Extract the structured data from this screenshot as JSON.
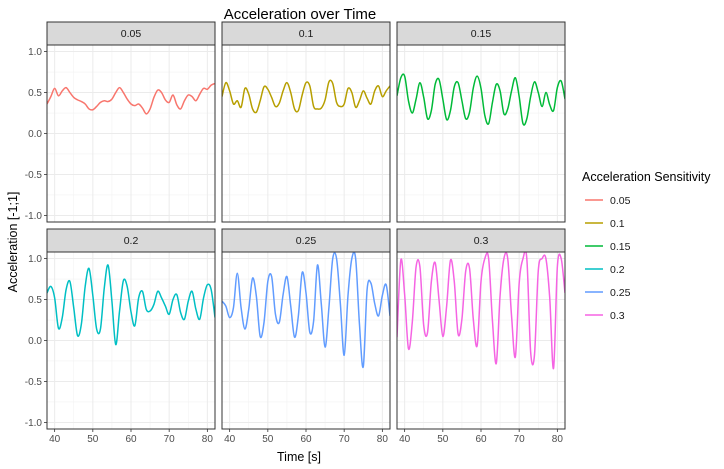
{
  "chart_data": {
    "type": "line",
    "title": "Acceleration over Time",
    "xlabel": "Time [s]",
    "ylabel": "Acceleration [-1;1]",
    "xlim": [
      38,
      82
    ],
    "ylim": [
      -1.08,
      1.08
    ],
    "x_ticks": [
      40,
      50,
      60,
      70,
      80
    ],
    "y_ticks": [
      -1.0,
      -0.5,
      0.0,
      0.5,
      1.0
    ],
    "y_tick_labels": [
      "-1.0",
      "-0.5",
      "0.0",
      "0.5",
      "1.0"
    ],
    "grid": true,
    "facet_layout": "2 rows x 3 columns",
    "legend": {
      "title": "Acceleration Sensitivity",
      "position": "right",
      "entries": [
        "0.05",
        "0.1",
        "0.15",
        "0.2",
        "0.25",
        "0.3"
      ]
    },
    "x": [
      38,
      39,
      40,
      41,
      42,
      43,
      44,
      45,
      46,
      47,
      48,
      49,
      50,
      51,
      52,
      53,
      54,
      55,
      56,
      57,
      58,
      59,
      60,
      61,
      62,
      63,
      64,
      65,
      66,
      67,
      68,
      69,
      70,
      71,
      72,
      73,
      74,
      75,
      76,
      77,
      78,
      79,
      80,
      81,
      82
    ],
    "series": [
      {
        "name": "0.05",
        "color": "#F8766D",
        "values": [
          0.36,
          0.45,
          0.55,
          0.46,
          0.52,
          0.56,
          0.5,
          0.44,
          0.41,
          0.39,
          0.36,
          0.3,
          0.29,
          0.33,
          0.38,
          0.4,
          0.39,
          0.42,
          0.5,
          0.56,
          0.5,
          0.42,
          0.36,
          0.34,
          0.36,
          0.31,
          0.24,
          0.3,
          0.44,
          0.53,
          0.5,
          0.41,
          0.38,
          0.47,
          0.35,
          0.3,
          0.4,
          0.47,
          0.45,
          0.4,
          0.48,
          0.55,
          0.54,
          0.59,
          0.61
        ]
      },
      {
        "name": "0.1",
        "color": "#B79F00",
        "values": [
          0.45,
          0.62,
          0.52,
          0.36,
          0.4,
          0.32,
          0.55,
          0.48,
          0.3,
          0.26,
          0.4,
          0.57,
          0.54,
          0.44,
          0.33,
          0.37,
          0.52,
          0.62,
          0.5,
          0.3,
          0.28,
          0.47,
          0.62,
          0.58,
          0.33,
          0.3,
          0.31,
          0.41,
          0.63,
          0.61,
          0.38,
          0.33,
          0.36,
          0.55,
          0.5,
          0.32,
          0.4,
          0.52,
          0.43,
          0.36,
          0.52,
          0.58,
          0.45,
          0.52,
          0.58
        ]
      },
      {
        "name": "0.15",
        "color": "#00BA38",
        "values": [
          0.46,
          0.68,
          0.7,
          0.4,
          0.25,
          0.42,
          0.62,
          0.44,
          0.18,
          0.28,
          0.6,
          0.66,
          0.42,
          0.17,
          0.28,
          0.57,
          0.62,
          0.4,
          0.18,
          0.26,
          0.56,
          0.7,
          0.55,
          0.22,
          0.12,
          0.38,
          0.6,
          0.52,
          0.24,
          0.3,
          0.52,
          0.68,
          0.45,
          0.12,
          0.18,
          0.45,
          0.63,
          0.5,
          0.33,
          0.5,
          0.35,
          0.28,
          0.56,
          0.64,
          0.42
        ]
      },
      {
        "name": "0.2",
        "color": "#00BFC4",
        "values": [
          0.58,
          0.66,
          0.52,
          0.15,
          0.28,
          0.62,
          0.72,
          0.4,
          0.06,
          0.2,
          0.66,
          0.88,
          0.55,
          0.14,
          0.14,
          0.64,
          0.92,
          0.48,
          -0.05,
          0.36,
          0.73,
          0.66,
          0.35,
          0.18,
          0.52,
          0.6,
          0.38,
          0.36,
          0.44,
          0.6,
          0.52,
          0.42,
          0.32,
          0.5,
          0.56,
          0.34,
          0.26,
          0.48,
          0.6,
          0.38,
          0.26,
          0.52,
          0.68,
          0.62,
          0.28
        ]
      },
      {
        "name": "0.25",
        "color": "#619CFF",
        "values": [
          0.48,
          0.42,
          0.28,
          0.4,
          0.82,
          0.4,
          0.14,
          0.38,
          0.76,
          0.54,
          0.05,
          0.22,
          0.72,
          0.78,
          0.32,
          0.22,
          0.56,
          0.78,
          0.42,
          0.04,
          0.3,
          0.83,
          0.58,
          0.1,
          0.24,
          0.92,
          0.45,
          -0.08,
          0.4,
          1.0,
          1.0,
          0.45,
          -0.18,
          0.55,
          1.0,
          1.0,
          0.2,
          -0.32,
          0.62,
          0.7,
          0.45,
          0.3,
          0.55,
          0.68,
          0.3
        ]
      },
      {
        "name": "0.3",
        "color": "#F564E3",
        "values": [
          0.04,
          0.98,
          0.56,
          -0.1,
          0.22,
          0.9,
          0.9,
          0.18,
          0.1,
          0.72,
          0.95,
          0.5,
          0.05,
          0.42,
          0.98,
          0.72,
          0.08,
          0.26,
          0.85,
          0.88,
          0.25,
          -0.06,
          0.72,
          1.0,
          1.0,
          0.24,
          -0.28,
          0.55,
          1.0,
          1.0,
          0.3,
          -0.2,
          0.7,
          1.0,
          1.0,
          -0.14,
          -0.18,
          0.85,
          1.0,
          1.0,
          0.52,
          -0.34,
          0.9,
          1.0,
          0.58
        ]
      }
    ]
  }
}
